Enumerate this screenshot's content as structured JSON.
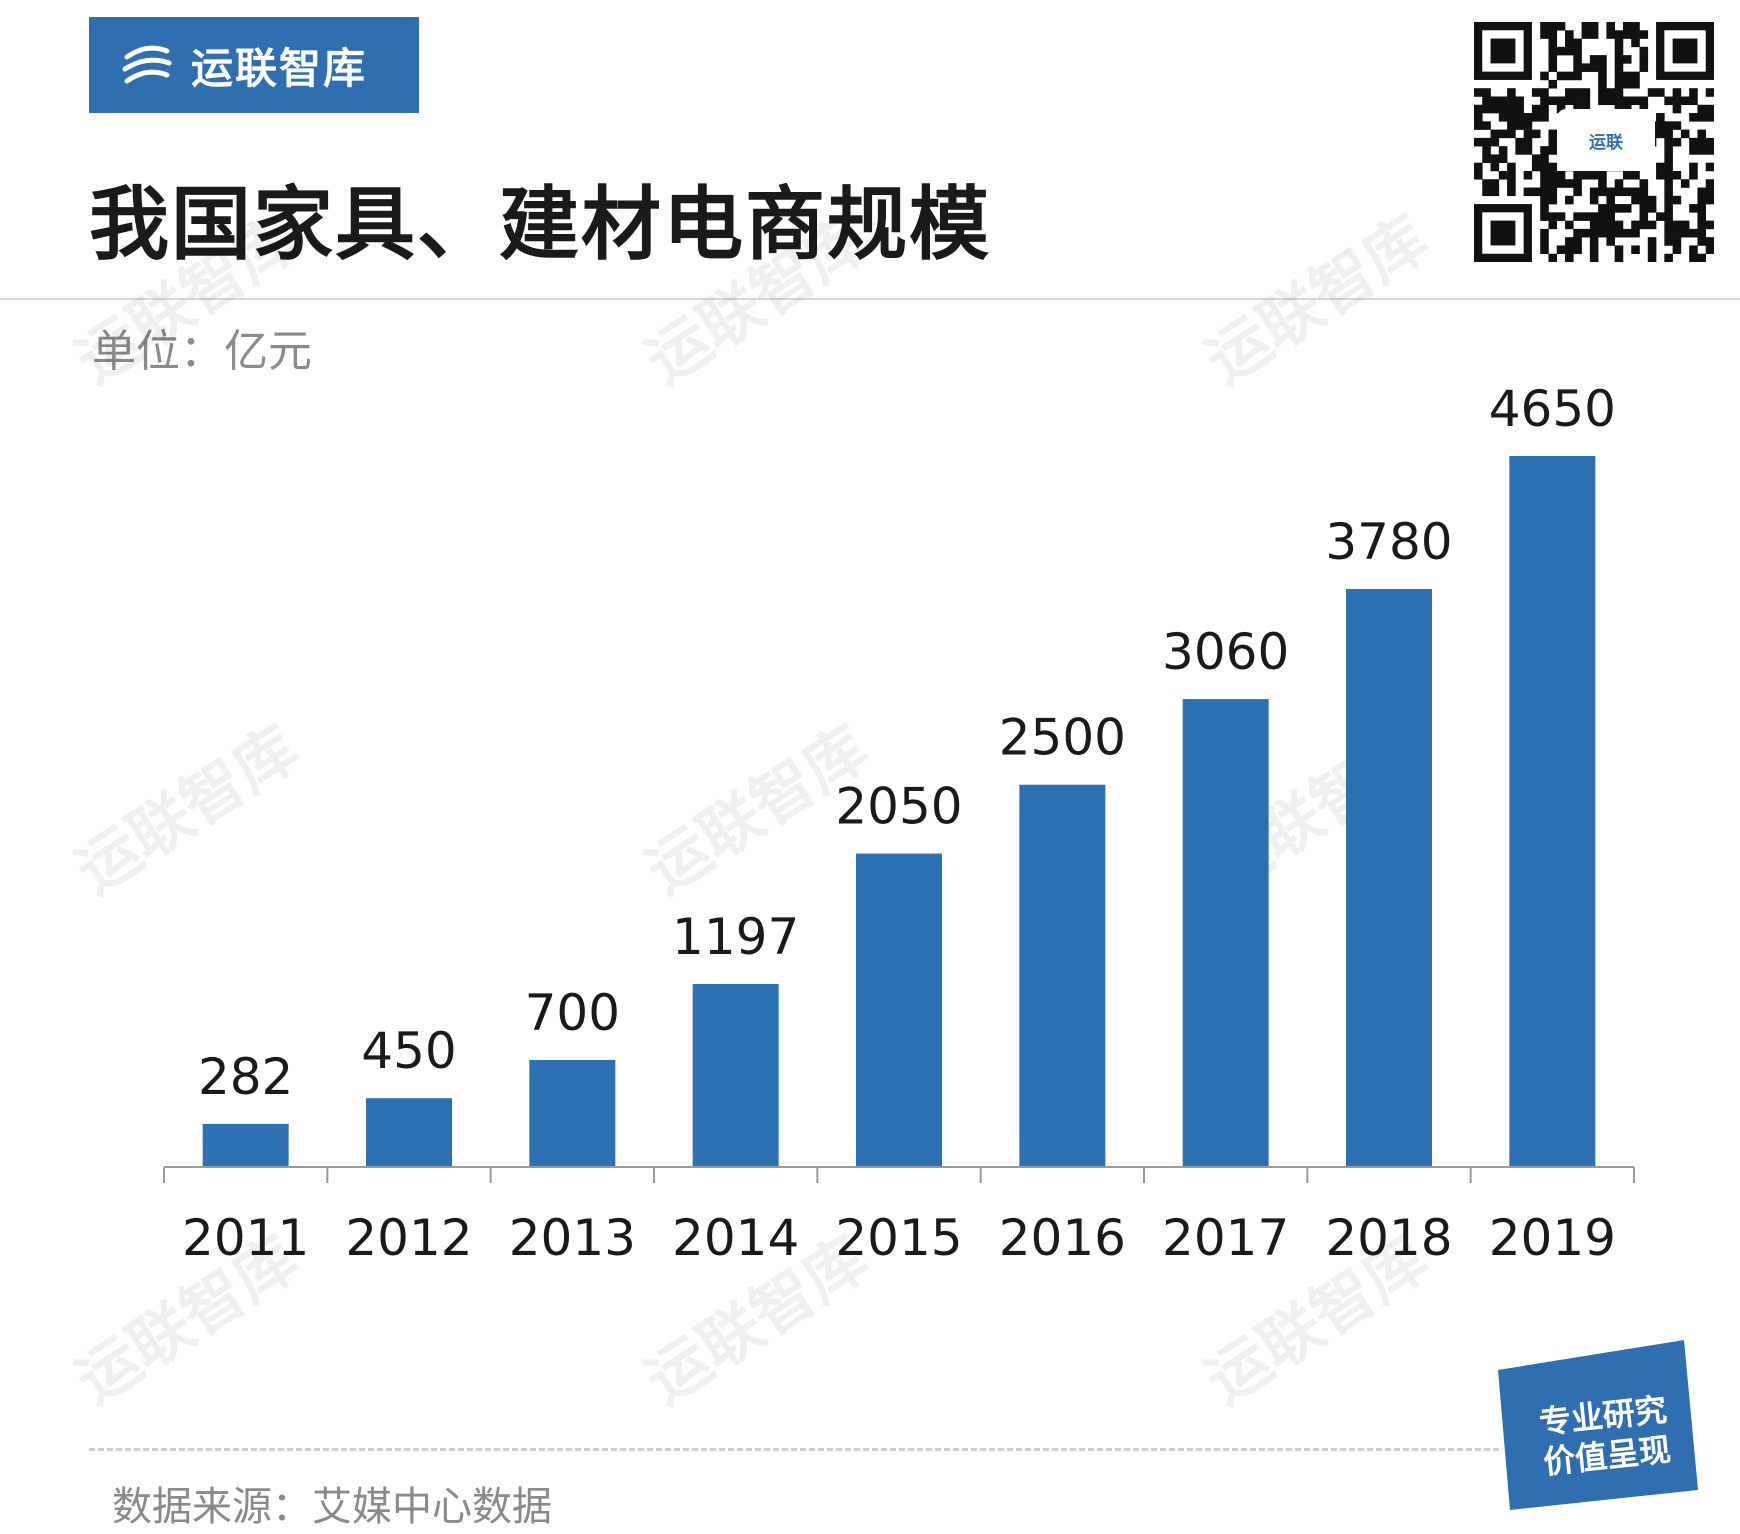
{
  "brand": {
    "name": "运联智库"
  },
  "title": "我国家具、建材电商规模",
  "unit": "单位：亿元",
  "source": "数据来源：艾媒中心数据",
  "slogan": {
    "line1": "专业研究",
    "line2": "价值呈现"
  },
  "qr": {
    "badge": "运联"
  },
  "watermark": "运联智库",
  "colors": {
    "bar": "#2e71b2",
    "brand": "#2f6fb0"
  },
  "chart_data": {
    "type": "bar",
    "categories": [
      "2011",
      "2012",
      "2013",
      "2014",
      "2015",
      "2016",
      "2017",
      "2018",
      "2019"
    ],
    "values": [
      282,
      450,
      700,
      1197,
      2050,
      2500,
      3060,
      3780,
      4650
    ],
    "data_labels": [
      "282",
      "450",
      "700",
      "1197",
      "2050",
      "2500",
      "3060",
      "3780",
      "4650"
    ],
    "ylim": [
      0,
      4650
    ],
    "grid": false,
    "legend": "none"
  }
}
